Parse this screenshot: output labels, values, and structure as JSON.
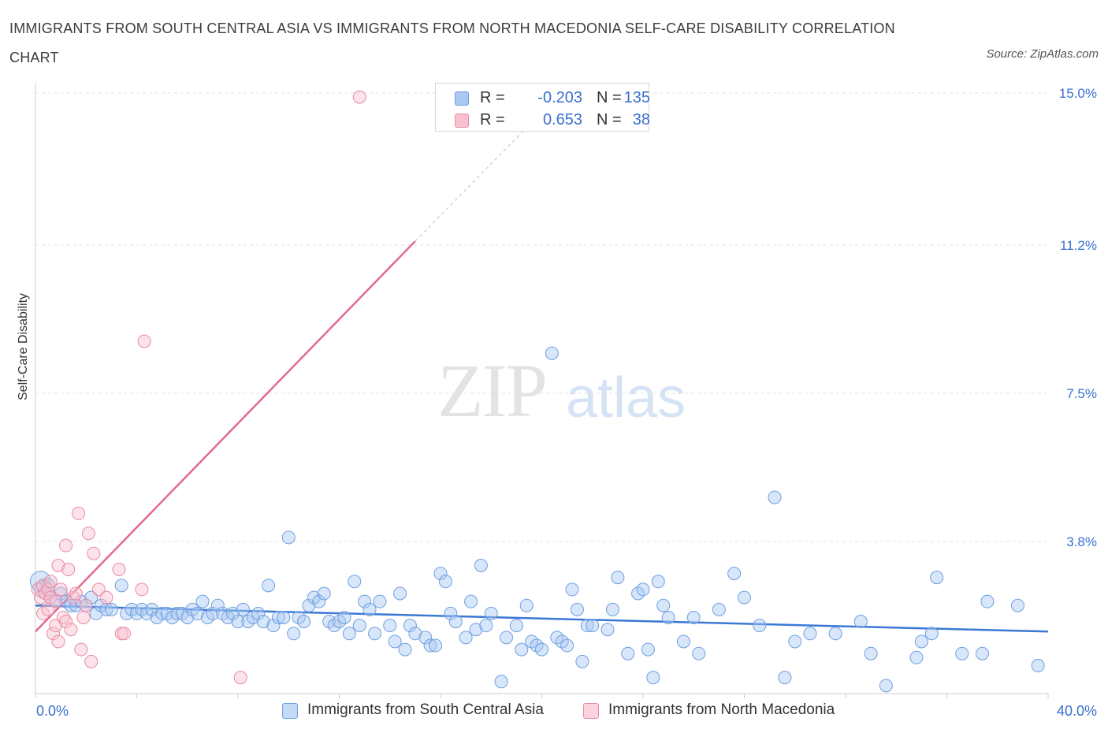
{
  "title": "IMMIGRANTS FROM SOUTH CENTRAL ASIA VS IMMIGRANTS FROM NORTH MACEDONIA SELF-CARE DISABILITY CORRELATION CHART",
  "source": "Source: ZipAtlas.com",
  "watermark": {
    "zip": "ZIP",
    "atlas": "atlas"
  },
  "legend": {
    "rows": [
      {
        "r_label": "R =",
        "r_value": "-0.203",
        "n_label": "N =",
        "n_value": "135",
        "color": "#a9c8f2",
        "border": "#6f9fe0"
      },
      {
        "r_label": "R =",
        "r_value": "0.653",
        "n_label": "N =",
        "n_value": "38",
        "color": "#f8c1cf",
        "border": "#e98aa5"
      }
    ]
  },
  "bottom_legend": [
    {
      "label": "Immigrants from South Central Asia",
      "color": "#c5daf7",
      "border": "#6f9fe0"
    },
    {
      "label": "Immigrants from North Macedonia",
      "color": "#fbd3dd",
      "border": "#e98aa5"
    }
  ],
  "chart_data": {
    "type": "scatter",
    "title": "IMMIGRANTS FROM SOUTH CENTRAL ASIA VS IMMIGRANTS FROM NORTH MACEDONIA SELF-CARE DISABILITY CORRELATION CHART",
    "ylabel": "Self-Care Disability",
    "xlabel": "",
    "xlim": [
      0,
      40
    ],
    "ylim": [
      0,
      15
    ],
    "x_tick_labels": [
      "0.0%",
      "40.0%"
    ],
    "y_ticks": [
      3.8,
      7.5,
      11.2,
      15.0
    ],
    "y_tick_labels": [
      "3.8%",
      "7.5%",
      "11.2%",
      "15.0%"
    ],
    "grid": "horizontal dashed",
    "legend_position": "top-center",
    "series": [
      {
        "name": "Immigrants from South Central Asia",
        "color": "#6f9fe0",
        "fill": "#a9c8f2",
        "r": -0.203,
        "n": 135,
        "trend": {
          "x": [
            0,
            40
          ],
          "y": [
            2.2,
            1.55
          ]
        },
        "points": [
          [
            0.2,
            2.8
          ],
          [
            0.3,
            2.6
          ],
          [
            0.5,
            2.7
          ],
          [
            0.6,
            2.4
          ],
          [
            0.8,
            2.3
          ],
          [
            1.0,
            2.5
          ],
          [
            1.2,
            2.3
          ],
          [
            1.4,
            2.2
          ],
          [
            1.6,
            2.2
          ],
          [
            1.8,
            2.3
          ],
          [
            2.0,
            2.2
          ],
          [
            2.2,
            2.4
          ],
          [
            2.4,
            2.0
          ],
          [
            2.6,
            2.2
          ],
          [
            2.8,
            2.1
          ],
          [
            3.0,
            2.1
          ],
          [
            3.4,
            2.7
          ],
          [
            3.6,
            2.0
          ],
          [
            3.8,
            2.1
          ],
          [
            4.0,
            2.0
          ],
          [
            4.2,
            2.1
          ],
          [
            4.4,
            2.0
          ],
          [
            4.6,
            2.1
          ],
          [
            4.8,
            1.9
          ],
          [
            5.0,
            2.0
          ],
          [
            5.2,
            2.0
          ],
          [
            5.4,
            1.9
          ],
          [
            5.6,
            2.0
          ],
          [
            5.8,
            2.0
          ],
          [
            6.0,
            1.9
          ],
          [
            6.2,
            2.1
          ],
          [
            6.4,
            2.0
          ],
          [
            6.6,
            2.3
          ],
          [
            6.8,
            1.9
          ],
          [
            7.0,
            2.0
          ],
          [
            7.2,
            2.2
          ],
          [
            7.4,
            2.0
          ],
          [
            7.6,
            1.9
          ],
          [
            7.8,
            2.0
          ],
          [
            8.0,
            1.8
          ],
          [
            8.2,
            2.1
          ],
          [
            8.4,
            1.8
          ],
          [
            8.6,
            1.9
          ],
          [
            8.8,
            2.0
          ],
          [
            9.0,
            1.8
          ],
          [
            9.2,
            2.7
          ],
          [
            9.4,
            1.7
          ],
          [
            9.6,
            1.9
          ],
          [
            9.8,
            1.9
          ],
          [
            10.0,
            3.9
          ],
          [
            10.2,
            1.5
          ],
          [
            10.4,
            1.9
          ],
          [
            10.6,
            1.8
          ],
          [
            10.8,
            2.2
          ],
          [
            11.0,
            2.4
          ],
          [
            11.2,
            2.3
          ],
          [
            11.4,
            2.5
          ],
          [
            11.6,
            1.8
          ],
          [
            11.8,
            1.7
          ],
          [
            12.0,
            1.8
          ],
          [
            12.2,
            1.9
          ],
          [
            12.4,
            1.5
          ],
          [
            12.6,
            2.8
          ],
          [
            12.8,
            1.7
          ],
          [
            13.0,
            2.3
          ],
          [
            13.2,
            2.1
          ],
          [
            13.4,
            1.5
          ],
          [
            13.6,
            2.3
          ],
          [
            14.0,
            1.7
          ],
          [
            14.2,
            1.3
          ],
          [
            14.4,
            2.5
          ],
          [
            14.6,
            1.1
          ],
          [
            14.8,
            1.7
          ],
          [
            15.0,
            1.5
          ],
          [
            15.4,
            1.4
          ],
          [
            15.6,
            1.2
          ],
          [
            15.8,
            1.2
          ],
          [
            16.0,
            3.0
          ],
          [
            16.2,
            2.8
          ],
          [
            16.4,
            2.0
          ],
          [
            16.6,
            1.8
          ],
          [
            17.0,
            1.4
          ],
          [
            17.2,
            2.3
          ],
          [
            17.4,
            1.6
          ],
          [
            17.6,
            3.2
          ],
          [
            17.8,
            1.7
          ],
          [
            18.0,
            2.0
          ],
          [
            18.4,
            0.3
          ],
          [
            18.6,
            1.4
          ],
          [
            19.0,
            1.7
          ],
          [
            19.2,
            1.1
          ],
          [
            19.4,
            2.2
          ],
          [
            19.6,
            1.3
          ],
          [
            19.8,
            1.2
          ],
          [
            20.0,
            1.1
          ],
          [
            20.4,
            8.5
          ],
          [
            20.6,
            1.4
          ],
          [
            20.8,
            1.3
          ],
          [
            21.0,
            1.2
          ],
          [
            21.2,
            2.6
          ],
          [
            21.4,
            2.1
          ],
          [
            21.6,
            0.8
          ],
          [
            21.8,
            1.7
          ],
          [
            22.0,
            1.7
          ],
          [
            22.6,
            1.6
          ],
          [
            22.8,
            2.1
          ],
          [
            23.0,
            2.9
          ],
          [
            23.4,
            1.0
          ],
          [
            23.8,
            2.5
          ],
          [
            24.0,
            2.6
          ],
          [
            24.2,
            1.1
          ],
          [
            24.4,
            0.4
          ],
          [
            24.6,
            2.8
          ],
          [
            24.8,
            2.2
          ],
          [
            25.0,
            1.9
          ],
          [
            25.6,
            1.3
          ],
          [
            26.0,
            1.9
          ],
          [
            26.2,
            1.0
          ],
          [
            27.0,
            2.1
          ],
          [
            27.6,
            3.0
          ],
          [
            28.0,
            2.4
          ],
          [
            28.6,
            1.7
          ],
          [
            29.2,
            4.9
          ],
          [
            29.6,
            0.4
          ],
          [
            30.0,
            1.3
          ],
          [
            30.6,
            1.5
          ],
          [
            31.6,
            1.5
          ],
          [
            32.6,
            1.8
          ],
          [
            33.0,
            1.0
          ],
          [
            33.6,
            0.2
          ],
          [
            34.8,
            0.9
          ],
          [
            35.0,
            1.3
          ],
          [
            35.4,
            1.5
          ],
          [
            35.6,
            2.9
          ],
          [
            36.6,
            1.0
          ],
          [
            37.4,
            1.0
          ],
          [
            37.6,
            2.3
          ],
          [
            38.8,
            2.2
          ],
          [
            39.6,
            0.7
          ]
        ]
      },
      {
        "name": "Immigrants from North Macedonia",
        "color": "#e98aa5",
        "fill": "#f8c1cf",
        "r": 0.653,
        "n": 38,
        "trend": {
          "x": [
            0,
            15
          ],
          "y": [
            1.55,
            11.3
          ]
        },
        "trend_dashed_extension": {
          "x": [
            15,
            19.5
          ],
          "y": [
            11.3,
            14.2
          ]
        },
        "points": [
          [
            0.1,
            2.6
          ],
          [
            0.2,
            2.4
          ],
          [
            0.3,
            2.7
          ],
          [
            0.3,
            2.0
          ],
          [
            0.4,
            2.5
          ],
          [
            0.5,
            2.6
          ],
          [
            0.5,
            2.1
          ],
          [
            0.6,
            2.4
          ],
          [
            0.7,
            1.5
          ],
          [
            0.8,
            1.7
          ],
          [
            0.8,
            2.3
          ],
          [
            0.9,
            3.2
          ],
          [
            0.9,
            1.3
          ],
          [
            1.0,
            2.6
          ],
          [
            1.1,
            1.9
          ],
          [
            1.2,
            1.8
          ],
          [
            1.2,
            3.7
          ],
          [
            1.3,
            3.1
          ],
          [
            1.4,
            1.6
          ],
          [
            1.5,
            2.4
          ],
          [
            1.6,
            2.5
          ],
          [
            1.7,
            4.5
          ],
          [
            1.8,
            1.1
          ],
          [
            1.9,
            1.9
          ],
          [
            2.0,
            2.2
          ],
          [
            2.1,
            4.0
          ],
          [
            2.2,
            0.8
          ],
          [
            2.3,
            3.5
          ],
          [
            2.5,
            2.6
          ],
          [
            2.8,
            2.4
          ],
          [
            3.3,
            3.1
          ],
          [
            3.4,
            1.5
          ],
          [
            3.5,
            1.5
          ],
          [
            4.2,
            2.6
          ],
          [
            4.3,
            8.8
          ],
          [
            8.1,
            0.4
          ],
          [
            12.8,
            14.9
          ],
          [
            0.6,
            2.8
          ]
        ]
      }
    ]
  }
}
